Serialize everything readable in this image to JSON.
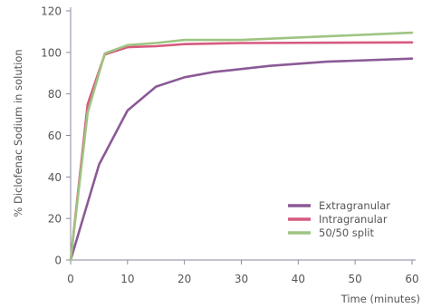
{
  "chart_data": {
    "type": "line",
    "title": "",
    "xlabel": "Time (minutes)",
    "ylabel": "% Diclofenac Sodium in solution",
    "xlim": [
      0,
      60
    ],
    "ylim": [
      0,
      120
    ],
    "x_ticks": [
      0,
      10,
      20,
      30,
      40,
      50,
      60
    ],
    "y_ticks": [
      0,
      20,
      40,
      60,
      80,
      100,
      120
    ],
    "grid": false,
    "legend_position": "bottom-right",
    "series": [
      {
        "name": "Extragranular",
        "color": "#8b5a96",
        "points": [
          [
            0,
            0
          ],
          [
            5,
            46
          ],
          [
            10,
            72
          ],
          [
            15,
            83.5
          ],
          [
            20,
            88
          ],
          [
            25,
            90.5
          ],
          [
            35,
            93.5
          ],
          [
            45,
            95.5
          ],
          [
            60,
            97
          ]
        ]
      },
      {
        "name": "Intragranular",
        "color": "#d65a7e",
        "points": [
          [
            0,
            0
          ],
          [
            3,
            75
          ],
          [
            6,
            99
          ],
          [
            10,
            102.5
          ],
          [
            15,
            103
          ],
          [
            20,
            104
          ],
          [
            30,
            104.5
          ],
          [
            60,
            104.8
          ]
        ]
      },
      {
        "name": "50/50 split",
        "color": "#9ec482",
        "points": [
          [
            0,
            0
          ],
          [
            3,
            71
          ],
          [
            6,
            99.5
          ],
          [
            10,
            103.5
          ],
          [
            15,
            104.5
          ],
          [
            20,
            106
          ],
          [
            30,
            106
          ],
          [
            60,
            109.5
          ]
        ]
      }
    ]
  }
}
